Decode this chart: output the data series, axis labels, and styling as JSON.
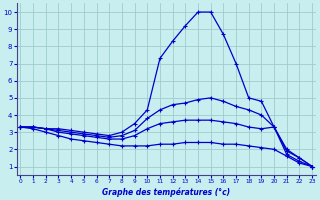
{
  "title": "Graphe des températures (°c)",
  "background_color": "#c8eef0",
  "grid_color": "#a0cccc",
  "line_color": "#0000cc",
  "hours": [
    0,
    1,
    2,
    3,
    4,
    5,
    6,
    7,
    8,
    9,
    10,
    11,
    12,
    13,
    14,
    15,
    16,
    17,
    18,
    19,
    20,
    21,
    22,
    23
  ],
  "curve1": [
    3.3,
    3.3,
    3.2,
    3.2,
    3.1,
    3.0,
    2.9,
    2.8,
    3.0,
    3.5,
    4.3,
    7.3,
    8.3,
    9.2,
    10.0,
    10.0,
    8.7,
    7.0,
    5.0,
    4.8,
    3.3,
    2.0,
    1.5,
    1.0
  ],
  "curve2": [
    3.3,
    3.3,
    3.2,
    3.1,
    3.0,
    2.9,
    2.8,
    2.7,
    2.8,
    3.1,
    3.8,
    4.3,
    4.6,
    4.7,
    4.9,
    5.0,
    4.8,
    4.5,
    4.3,
    4.0,
    3.3,
    1.9,
    1.5,
    1.0
  ],
  "curve3": [
    3.3,
    3.3,
    3.2,
    3.0,
    2.9,
    2.8,
    2.7,
    2.6,
    2.6,
    2.8,
    3.2,
    3.5,
    3.6,
    3.7,
    3.7,
    3.7,
    3.6,
    3.5,
    3.3,
    3.2,
    3.3,
    1.7,
    1.3,
    1.0
  ],
  "curve4": [
    3.3,
    3.2,
    3.0,
    2.8,
    2.6,
    2.5,
    2.4,
    2.3,
    2.2,
    2.2,
    2.2,
    2.3,
    2.3,
    2.4,
    2.4,
    2.4,
    2.3,
    2.3,
    2.2,
    2.1,
    2.0,
    1.6,
    1.2,
    1.0
  ],
  "xlim": [
    0,
    23
  ],
  "ylim": [
    0.5,
    10.5
  ],
  "yticks": [
    1,
    2,
    3,
    4,
    5,
    6,
    7,
    8,
    9,
    10
  ],
  "xticks": [
    0,
    1,
    2,
    3,
    4,
    5,
    6,
    7,
    8,
    9,
    10,
    11,
    12,
    13,
    14,
    15,
    16,
    17,
    18,
    19,
    20,
    21,
    22,
    23
  ]
}
